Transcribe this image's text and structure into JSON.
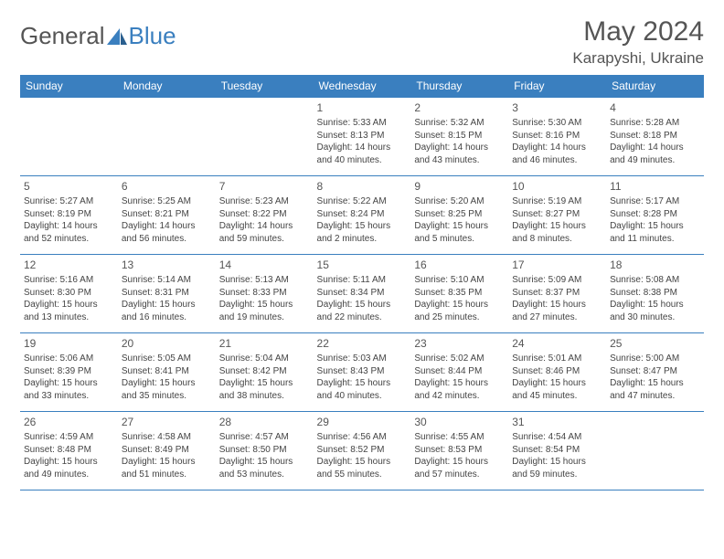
{
  "brand": {
    "general": "General",
    "blue": "Blue"
  },
  "title": "May 2024",
  "location": "Karapyshi, Ukraine",
  "colors": {
    "accent": "#3a7fbf",
    "text": "#444444",
    "heading": "#555555"
  },
  "weekdays": [
    "Sunday",
    "Monday",
    "Tuesday",
    "Wednesday",
    "Thursday",
    "Friday",
    "Saturday"
  ],
  "layout": {
    "first_weekday_index": 3,
    "days_in_month": 31
  },
  "days": {
    "1": {
      "sunrise": "5:33 AM",
      "sunset": "8:13 PM",
      "daylight": "14 hours and 40 minutes."
    },
    "2": {
      "sunrise": "5:32 AM",
      "sunset": "8:15 PM",
      "daylight": "14 hours and 43 minutes."
    },
    "3": {
      "sunrise": "5:30 AM",
      "sunset": "8:16 PM",
      "daylight": "14 hours and 46 minutes."
    },
    "4": {
      "sunrise": "5:28 AM",
      "sunset": "8:18 PM",
      "daylight": "14 hours and 49 minutes."
    },
    "5": {
      "sunrise": "5:27 AM",
      "sunset": "8:19 PM",
      "daylight": "14 hours and 52 minutes."
    },
    "6": {
      "sunrise": "5:25 AM",
      "sunset": "8:21 PM",
      "daylight": "14 hours and 56 minutes."
    },
    "7": {
      "sunrise": "5:23 AM",
      "sunset": "8:22 PM",
      "daylight": "14 hours and 59 minutes."
    },
    "8": {
      "sunrise": "5:22 AM",
      "sunset": "8:24 PM",
      "daylight": "15 hours and 2 minutes."
    },
    "9": {
      "sunrise": "5:20 AM",
      "sunset": "8:25 PM",
      "daylight": "15 hours and 5 minutes."
    },
    "10": {
      "sunrise": "5:19 AM",
      "sunset": "8:27 PM",
      "daylight": "15 hours and 8 minutes."
    },
    "11": {
      "sunrise": "5:17 AM",
      "sunset": "8:28 PM",
      "daylight": "15 hours and 11 minutes."
    },
    "12": {
      "sunrise": "5:16 AM",
      "sunset": "8:30 PM",
      "daylight": "15 hours and 13 minutes."
    },
    "13": {
      "sunrise": "5:14 AM",
      "sunset": "8:31 PM",
      "daylight": "15 hours and 16 minutes."
    },
    "14": {
      "sunrise": "5:13 AM",
      "sunset": "8:33 PM",
      "daylight": "15 hours and 19 minutes."
    },
    "15": {
      "sunrise": "5:11 AM",
      "sunset": "8:34 PM",
      "daylight": "15 hours and 22 minutes."
    },
    "16": {
      "sunrise": "5:10 AM",
      "sunset": "8:35 PM",
      "daylight": "15 hours and 25 minutes."
    },
    "17": {
      "sunrise": "5:09 AM",
      "sunset": "8:37 PM",
      "daylight": "15 hours and 27 minutes."
    },
    "18": {
      "sunrise": "5:08 AM",
      "sunset": "8:38 PM",
      "daylight": "15 hours and 30 minutes."
    },
    "19": {
      "sunrise": "5:06 AM",
      "sunset": "8:39 PM",
      "daylight": "15 hours and 33 minutes."
    },
    "20": {
      "sunrise": "5:05 AM",
      "sunset": "8:41 PM",
      "daylight": "15 hours and 35 minutes."
    },
    "21": {
      "sunrise": "5:04 AM",
      "sunset": "8:42 PM",
      "daylight": "15 hours and 38 minutes."
    },
    "22": {
      "sunrise": "5:03 AM",
      "sunset": "8:43 PM",
      "daylight": "15 hours and 40 minutes."
    },
    "23": {
      "sunrise": "5:02 AM",
      "sunset": "8:44 PM",
      "daylight": "15 hours and 42 minutes."
    },
    "24": {
      "sunrise": "5:01 AM",
      "sunset": "8:46 PM",
      "daylight": "15 hours and 45 minutes."
    },
    "25": {
      "sunrise": "5:00 AM",
      "sunset": "8:47 PM",
      "daylight": "15 hours and 47 minutes."
    },
    "26": {
      "sunrise": "4:59 AM",
      "sunset": "8:48 PM",
      "daylight": "15 hours and 49 minutes."
    },
    "27": {
      "sunrise": "4:58 AM",
      "sunset": "8:49 PM",
      "daylight": "15 hours and 51 minutes."
    },
    "28": {
      "sunrise": "4:57 AM",
      "sunset": "8:50 PM",
      "daylight": "15 hours and 53 minutes."
    },
    "29": {
      "sunrise": "4:56 AM",
      "sunset": "8:52 PM",
      "daylight": "15 hours and 55 minutes."
    },
    "30": {
      "sunrise": "4:55 AM",
      "sunset": "8:53 PM",
      "daylight": "15 hours and 57 minutes."
    },
    "31": {
      "sunrise": "4:54 AM",
      "sunset": "8:54 PM",
      "daylight": "15 hours and 59 minutes."
    }
  },
  "labels": {
    "sunrise": "Sunrise: ",
    "sunset": "Sunset: ",
    "daylight": "Daylight: "
  }
}
